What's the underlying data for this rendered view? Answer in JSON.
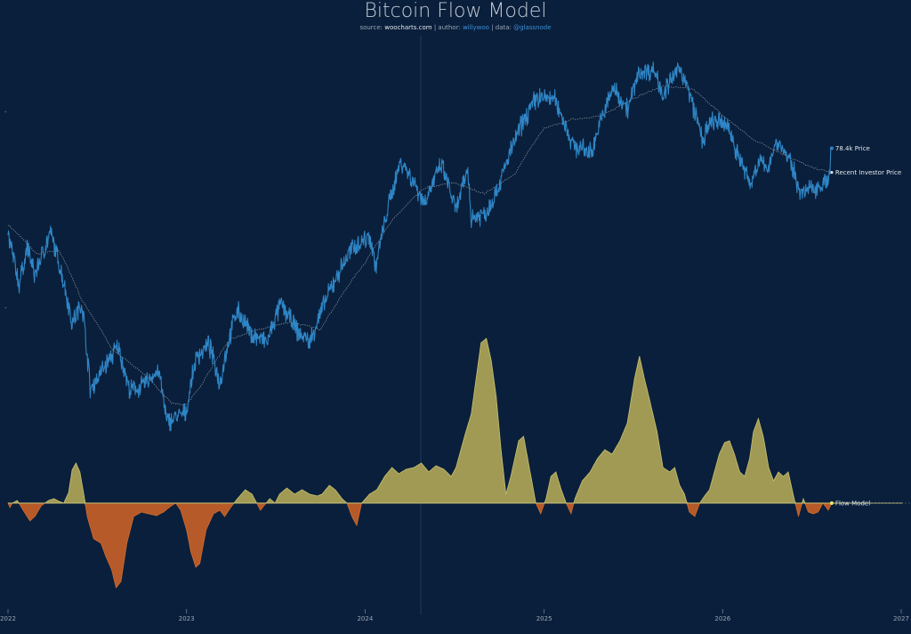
{
  "title": "Bitcoin Flow Model",
  "subtitle": {
    "source_prefix": "source: ",
    "source": "woocharts.com",
    "author_prefix": " | author: ",
    "author": "willywoo",
    "data_prefix": " | data: ",
    "data": "@glassnode"
  },
  "colors": {
    "background": "#0a1f3b",
    "price": "#2f86c6",
    "investor": "#8f9aa8",
    "flow_positive": "#a09a55",
    "flow_positive_edge": "#c9c070",
    "flow_negative": "#b55a28",
    "flow_negative_edge": "#d06a30",
    "zero_line": "#c8c275",
    "marker": "#f0e26a"
  },
  "chart_data": {
    "type": "line",
    "x_axis": {
      "type": "date",
      "range": [
        "2022-01-01",
        "2027-01-01"
      ],
      "tick_labels": [
        "2022",
        "2023",
        "2024",
        "2025",
        "2026",
        "2027"
      ]
    },
    "price_axis": {
      "scale": "log",
      "grid": false
    },
    "series": [
      {
        "name": "Price",
        "last_label": "78.4k Price",
        "points": [
          [
            "2022-01-01",
            47000
          ],
          [
            "2022-01-24",
            35000
          ],
          [
            "2022-02-10",
            44000
          ],
          [
            "2022-02-24",
            37000
          ],
          [
            "2022-03-29",
            47500
          ],
          [
            "2022-05-12",
            28000
          ],
          [
            "2022-06-01",
            31500
          ],
          [
            "2022-06-18",
            18900
          ],
          [
            "2022-07-10",
            21000
          ],
          [
            "2022-08-14",
            24400
          ],
          [
            "2022-09-06",
            18800
          ],
          [
            "2022-10-01",
            19300
          ],
          [
            "2022-11-05",
            21200
          ],
          [
            "2022-11-21",
            15700
          ],
          [
            "2022-12-31",
            16500
          ],
          [
            "2023-01-21",
            22900
          ],
          [
            "2023-02-16",
            24700
          ],
          [
            "2023-03-10",
            19600
          ],
          [
            "2023-04-14",
            30400
          ],
          [
            "2023-05-12",
            26300
          ],
          [
            "2023-06-15",
            25000
          ],
          [
            "2023-07-13",
            31400
          ],
          [
            "2023-08-17",
            26500
          ],
          [
            "2023-09-11",
            25100
          ],
          [
            "2023-10-24",
            34500
          ],
          [
            "2023-12-08",
            44000
          ],
          [
            "2024-01-11",
            46700
          ],
          [
            "2024-01-23",
            38800
          ],
          [
            "2024-02-28",
            62400
          ],
          [
            "2024-03-14",
            73000
          ],
          [
            "2024-05-01",
            57000
          ],
          [
            "2024-06-05",
            71000
          ],
          [
            "2024-07-05",
            54000
          ],
          [
            "2024-07-29",
            69000
          ],
          [
            "2024-08-05",
            52000
          ],
          [
            "2024-09-06",
            53800
          ],
          [
            "2024-10-01",
            63000
          ],
          [
            "2024-11-12",
            88000
          ],
          [
            "2024-12-17",
            106000
          ],
          [
            "2025-01-22",
            105000
          ],
          [
            "2025-02-28",
            80000
          ],
          [
            "2025-04-07",
            76300
          ],
          [
            "2025-05-22",
            111700
          ],
          [
            "2025-06-22",
            99000
          ],
          [
            "2025-07-14",
            122800
          ],
          [
            "2025-08-14",
            124100
          ],
          [
            "2025-09-01",
            108000
          ],
          [
            "2025-10-06",
            126200
          ],
          [
            "2025-11-21",
            82000
          ],
          [
            "2025-12-10",
            92000
          ],
          [
            "2026-01-10",
            90000
          ],
          [
            "2026-01-31",
            76000
          ],
          [
            "2026-02-27",
            63000
          ],
          [
            "2026-03-15",
            73000
          ],
          [
            "2026-04-01",
            69000
          ],
          [
            "2026-04-22",
            82000
          ],
          [
            "2026-05-18",
            73000
          ],
          [
            "2026-06-10",
            60000
          ],
          [
            "2026-07-15",
            63000
          ],
          [
            "2026-08-05",
            64500
          ],
          [
            "2026-08-12",
            78400
          ]
        ]
      },
      {
        "name": "Recent Investor Price",
        "points": [
          [
            "2022-01-01",
            50000
          ],
          [
            "2022-03-01",
            42000
          ],
          [
            "2022-04-15",
            43000
          ],
          [
            "2022-06-01",
            32000
          ],
          [
            "2022-08-01",
            24000
          ],
          [
            "2022-10-01",
            21000
          ],
          [
            "2022-12-01",
            17500
          ],
          [
            "2023-01-01",
            17300
          ],
          [
            "2023-02-01",
            19500
          ],
          [
            "2023-04-01",
            25500
          ],
          [
            "2023-06-01",
            27000
          ],
          [
            "2023-08-01",
            28200
          ],
          [
            "2023-10-01",
            27000
          ],
          [
            "2023-11-01",
            31000
          ],
          [
            "2024-01-01",
            40000
          ],
          [
            "2024-03-01",
            52000
          ],
          [
            "2024-05-01",
            62000
          ],
          [
            "2024-07-01",
            64000
          ],
          [
            "2024-09-01",
            60000
          ],
          [
            "2024-11-01",
            67000
          ],
          [
            "2025-01-01",
            88000
          ],
          [
            "2025-03-01",
            93000
          ],
          [
            "2025-05-01",
            95000
          ],
          [
            "2025-07-01",
            105000
          ],
          [
            "2025-09-01",
            113000
          ],
          [
            "2025-11-01",
            111000
          ],
          [
            "2026-01-01",
            95000
          ],
          [
            "2026-03-01",
            83000
          ],
          [
            "2026-05-01",
            76000
          ],
          [
            "2026-07-01",
            70000
          ],
          [
            "2026-08-12",
            68000
          ]
        ]
      },
      {
        "name": "Flow Model",
        "points": [
          [
            "2022-01-01",
            0
          ],
          [
            "2022-01-05",
            -5
          ],
          [
            "2022-01-10",
            0
          ],
          [
            "2022-01-20",
            3
          ],
          [
            "2022-02-01",
            -8
          ],
          [
            "2022-02-15",
            -20
          ],
          [
            "2022-02-25",
            -15
          ],
          [
            "2022-03-10",
            -3
          ],
          [
            "2022-03-25",
            3
          ],
          [
            "2022-04-05",
            5
          ],
          [
            "2022-04-15",
            2
          ],
          [
            "2022-04-25",
            0
          ],
          [
            "2022-05-05",
            12
          ],
          [
            "2022-05-12",
            37
          ],
          [
            "2022-05-20",
            45
          ],
          [
            "2022-05-28",
            35
          ],
          [
            "2022-06-05",
            10
          ],
          [
            "2022-06-12",
            -15
          ],
          [
            "2022-06-25",
            -40
          ],
          [
            "2022-07-10",
            -45
          ],
          [
            "2022-07-20",
            -60
          ],
          [
            "2022-08-01",
            -75
          ],
          [
            "2022-08-10",
            -95
          ],
          [
            "2022-08-20",
            -88
          ],
          [
            "2022-09-01",
            -45
          ],
          [
            "2022-09-15",
            -15
          ],
          [
            "2022-10-01",
            -10
          ],
          [
            "2022-10-15",
            -12
          ],
          [
            "2022-11-01",
            -14
          ],
          [
            "2022-11-15",
            -10
          ],
          [
            "2022-12-01",
            -3
          ],
          [
            "2022-12-10",
            0
          ],
          [
            "2022-12-20",
            -8
          ],
          [
            "2023-01-01",
            -30
          ],
          [
            "2023-01-10",
            -55
          ],
          [
            "2023-01-20",
            -72
          ],
          [
            "2023-01-28",
            -68
          ],
          [
            "2023-02-10",
            -30
          ],
          [
            "2023-02-25",
            -12
          ],
          [
            "2023-03-10",
            -8
          ],
          [
            "2023-03-20",
            -15
          ],
          [
            "2023-04-01",
            -5
          ],
          [
            "2023-04-15",
            5
          ],
          [
            "2023-05-01",
            15
          ],
          [
            "2023-05-15",
            10
          ],
          [
            "2023-06-01",
            -8
          ],
          [
            "2023-06-20",
            5
          ],
          [
            "2023-07-01",
            0
          ],
          [
            "2023-07-10",
            10
          ],
          [
            "2023-07-25",
            17
          ],
          [
            "2023-08-10",
            10
          ],
          [
            "2023-08-25",
            15
          ],
          [
            "2023-09-10",
            10
          ],
          [
            "2023-09-25",
            8
          ],
          [
            "2023-10-05",
            10
          ],
          [
            "2023-10-20",
            20
          ],
          [
            "2023-11-01",
            15
          ],
          [
            "2023-11-15",
            5
          ],
          [
            "2023-11-25",
            0
          ],
          [
            "2023-12-05",
            -15
          ],
          [
            "2023-12-15",
            -25
          ],
          [
            "2023-12-25",
            0
          ],
          [
            "2024-01-10",
            10
          ],
          [
            "2024-01-25",
            15
          ],
          [
            "2024-02-10",
            30
          ],
          [
            "2024-02-25",
            40
          ],
          [
            "2024-03-10",
            33
          ],
          [
            "2024-03-25",
            38
          ],
          [
            "2024-04-10",
            40
          ],
          [
            "2024-04-25",
            45
          ],
          [
            "2024-05-10",
            35
          ],
          [
            "2024-05-25",
            42
          ],
          [
            "2024-06-10",
            38
          ],
          [
            "2024-06-25",
            30
          ],
          [
            "2024-07-05",
            40
          ],
          [
            "2024-07-15",
            60
          ],
          [
            "2024-07-25",
            80
          ],
          [
            "2024-08-05",
            100
          ],
          [
            "2024-08-15",
            140
          ],
          [
            "2024-08-25",
            180
          ],
          [
            "2024-09-05",
            185
          ],
          [
            "2024-09-15",
            160
          ],
          [
            "2024-09-25",
            120
          ],
          [
            "2024-10-05",
            60
          ],
          [
            "2024-10-15",
            10
          ],
          [
            "2024-10-25",
            30
          ],
          [
            "2024-11-10",
            70
          ],
          [
            "2024-11-20",
            75
          ],
          [
            "2024-12-05",
            30
          ],
          [
            "2024-12-15",
            0
          ],
          [
            "2024-12-25",
            -12
          ],
          [
            "2025-01-05",
            5
          ],
          [
            "2025-01-15",
            30
          ],
          [
            "2025-01-25",
            35
          ],
          [
            "2025-02-05",
            15
          ],
          [
            "2025-02-15",
            0
          ],
          [
            "2025-02-25",
            -12
          ],
          [
            "2025-03-05",
            5
          ],
          [
            "2025-03-20",
            25
          ],
          [
            "2025-04-05",
            35
          ],
          [
            "2025-04-20",
            50
          ],
          [
            "2025-05-05",
            60
          ],
          [
            "2025-05-20",
            55
          ],
          [
            "2025-06-05",
            70
          ],
          [
            "2025-06-20",
            90
          ],
          [
            "2025-07-05",
            140
          ],
          [
            "2025-07-15",
            165
          ],
          [
            "2025-07-25",
            140
          ],
          [
            "2025-08-05",
            115
          ],
          [
            "2025-08-20",
            80
          ],
          [
            "2025-09-01",
            40
          ],
          [
            "2025-09-15",
            35
          ],
          [
            "2025-09-25",
            40
          ],
          [
            "2025-10-05",
            20
          ],
          [
            "2025-10-15",
            10
          ],
          [
            "2025-10-25",
            -10
          ],
          [
            "2025-11-05",
            -15
          ],
          [
            "2025-11-15",
            0
          ],
          [
            "2025-11-25",
            8
          ],
          [
            "2025-12-05",
            15
          ],
          [
            "2025-12-15",
            35
          ],
          [
            "2025-12-25",
            55
          ],
          [
            "2026-01-05",
            68
          ],
          [
            "2026-01-15",
            70
          ],
          [
            "2026-01-25",
            55
          ],
          [
            "2026-02-05",
            35
          ],
          [
            "2026-02-15",
            30
          ],
          [
            "2026-02-25",
            50
          ],
          [
            "2026-03-05",
            80
          ],
          [
            "2026-03-15",
            95
          ],
          [
            "2026-03-25",
            75
          ],
          [
            "2026-04-05",
            40
          ],
          [
            "2026-04-15",
            25
          ],
          [
            "2026-04-25",
            35
          ],
          [
            "2026-05-05",
            30
          ],
          [
            "2026-05-15",
            35
          ],
          [
            "2026-05-25",
            10
          ],
          [
            "2026-06-05",
            -15
          ],
          [
            "2026-06-15",
            5
          ],
          [
            "2026-06-25",
            -10
          ],
          [
            "2026-07-05",
            -12
          ],
          [
            "2026-07-15",
            -10
          ],
          [
            "2026-07-25",
            0
          ],
          [
            "2026-08-05",
            -8
          ],
          [
            "2026-08-12",
            0
          ]
        ]
      }
    ]
  }
}
